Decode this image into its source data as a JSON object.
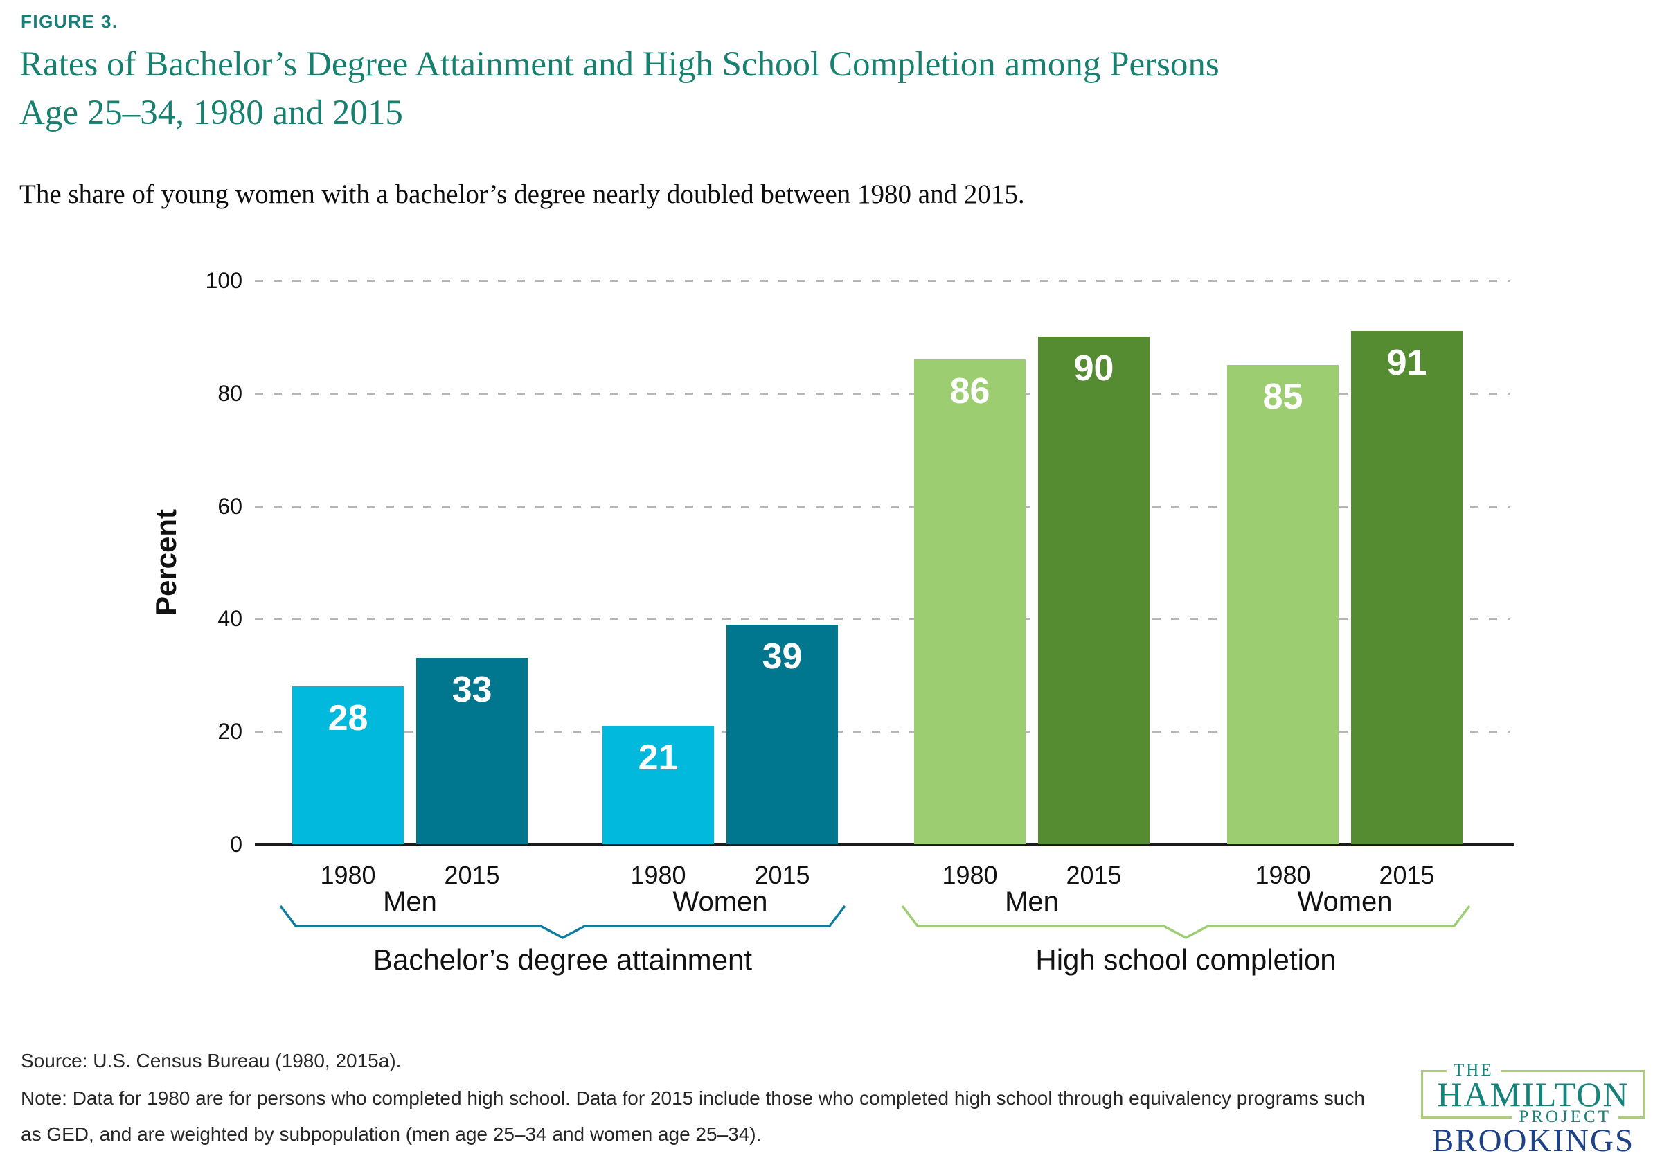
{
  "header": {
    "figure_label": "FIGURE 3.",
    "title_line1": "Rates of Bachelor’s Degree Attainment and High School Completion among Persons",
    "title_line2": "Age 25–34, 1980 and 2015",
    "standfirst": "The share of young women with a bachelor’s degree nearly doubled between 1980 and 2015."
  },
  "chart_data": {
    "type": "bar",
    "title": "Rates of Bachelor’s Degree Attainment and High School Completion among Persons Age 25–34, 1980 and 2015",
    "ylabel": "Percent",
    "ylim": [
      0,
      100
    ],
    "yticks": [
      0,
      20,
      40,
      60,
      80,
      100
    ],
    "grid": "horizontal dashed gridlines at 20, 40, 60, 80, 100; none at 0",
    "legend": "none (years labeled under each bar, values labeled inside bar tops)",
    "categories": [
      "Men 1980",
      "Men 2015",
      "Women 1980",
      "Women 2015"
    ],
    "sections": [
      {
        "label": "Bachelor’s degree attainment",
        "color_1980": "#00b9dc",
        "color_2015": "#00768f",
        "brace_color": "#0d7d9e",
        "groups": [
          {
            "label": "Men",
            "bars": [
              {
                "year": "1980",
                "value": 28
              },
              {
                "year": "2015",
                "value": 33
              }
            ]
          },
          {
            "label": "Women",
            "bars": [
              {
                "year": "1980",
                "value": 21
              },
              {
                "year": "2015",
                "value": 39
              }
            ]
          }
        ]
      },
      {
        "label": "High school completion",
        "color_1980": "#9ccd70",
        "color_2015": "#558b31",
        "brace_color": "#9ccd70",
        "groups": [
          {
            "label": "Men",
            "bars": [
              {
                "year": "1980",
                "value": 86
              },
              {
                "year": "2015",
                "value": 90
              }
            ]
          },
          {
            "label": "Women",
            "bars": [
              {
                "year": "1980",
                "value": 85
              },
              {
                "year": "2015",
                "value": 91
              }
            ]
          }
        ]
      }
    ]
  },
  "footer": {
    "source": "Source: U.S. Census Bureau (1980, 2015a).",
    "note_line1": "Note: Data for 1980 are for persons who completed high school. Data for 2015 include those who completed high school through equivalency programs such",
    "note_line2": "as GED, and are weighted by subpopulation (men age 25–34 and women age 25–34)."
  },
  "logo": {
    "the": "THE",
    "hamilton": "HAMILTON",
    "project": "PROJECT",
    "brookings": "BROOKINGS",
    "teal": "#15837b",
    "navy": "#1e4287",
    "box_border_green": "#abcd7c"
  }
}
